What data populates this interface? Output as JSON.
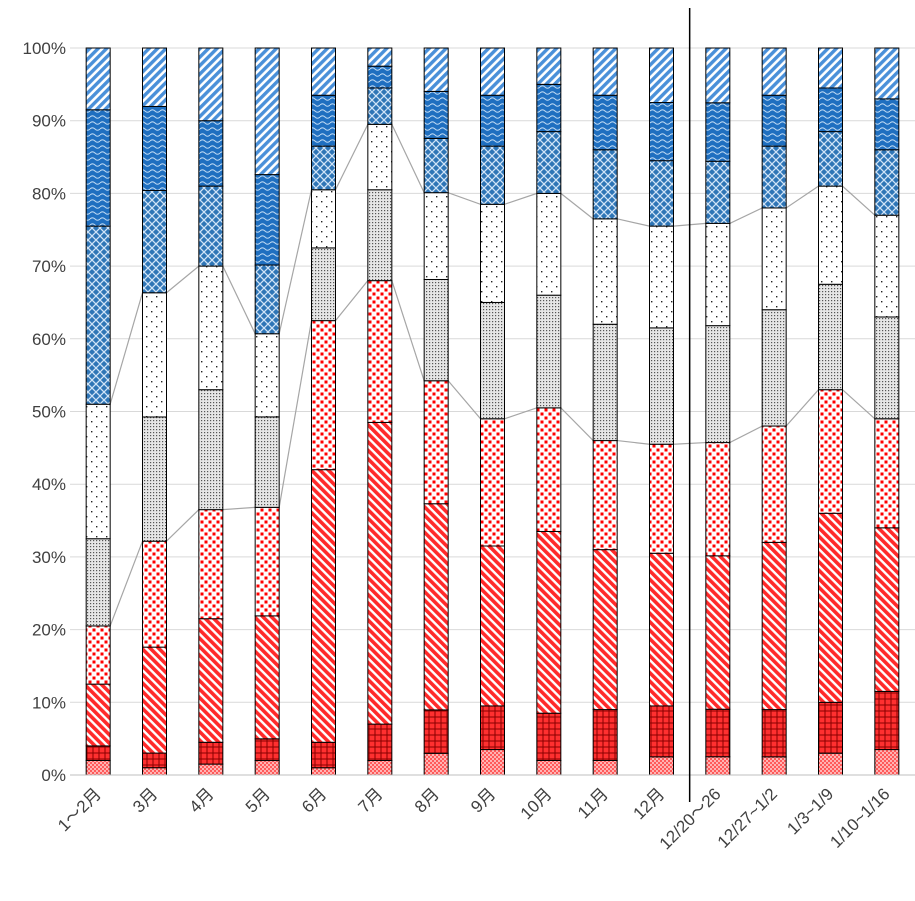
{
  "chart_data": {
    "type": "bar",
    "stacked": true,
    "normalized": true,
    "categories": [
      "1～2月",
      "3月",
      "4月",
      "5月",
      "6月",
      "7月",
      "8月",
      "9月",
      "10月",
      "11月",
      "12月",
      "12/20～26",
      "12/27~1/2",
      "1/3~1/9",
      "1/10~1/16"
    ],
    "ylim": [
      0,
      100
    ],
    "yticks": [
      "0%",
      "10%",
      "20%",
      "30%",
      "40%",
      "50%",
      "60%",
      "70%",
      "80%",
      "90%",
      "100%"
    ],
    "grid": true,
    "legend": "none",
    "divider_after_category": "12月",
    "series": [
      {
        "color": "#ff4b4b",
        "pattern": "checker-light",
        "values": [
          2,
          1,
          1.5,
          2,
          1,
          2,
          3,
          3.5,
          2,
          2,
          2.5,
          2.5,
          2.5,
          3,
          3.5
        ]
      },
      {
        "color": "#ff2020",
        "pattern": "crosshatch",
        "values": [
          2,
          2,
          3,
          3,
          3.5,
          5,
          6,
          6,
          6.5,
          7,
          7,
          6.5,
          6.5,
          7,
          8
        ]
      },
      {
        "color": "#ff2020",
        "pattern": "diagonal",
        "values": [
          8.5,
          14.5,
          17,
          17,
          37.5,
          41.5,
          28.5,
          22,
          25,
          22,
          21,
          21,
          23,
          26,
          22.5
        ]
      },
      {
        "color": "#ff0000",
        "pattern": "dots",
        "values": [
          8,
          14.5,
          15,
          15,
          20.5,
          19.5,
          17,
          17.5,
          17,
          15,
          15,
          15.5,
          16,
          17,
          15
        ]
      },
      {
        "color": "#777777",
        "pattern": "fine-dots",
        "values": [
          12,
          17,
          16.5,
          12.5,
          10,
          12.5,
          14,
          16,
          15.5,
          16,
          16,
          16,
          16,
          14.5,
          14
        ]
      },
      {
        "color": "#333333",
        "pattern": "sparse-dots",
        "values": [
          18.5,
          17,
          17,
          11.5,
          8,
          9,
          12,
          13.5,
          14,
          14.5,
          14,
          14,
          14,
          13.5,
          14
        ]
      },
      {
        "color": "#2e75b6",
        "pattern": "diamond",
        "values": [
          24.5,
          14,
          11,
          9.5,
          6,
          5,
          7.5,
          8,
          8.5,
          9.5,
          9,
          8.5,
          8.5,
          7.5,
          9
        ]
      },
      {
        "color": "#1f6fc0",
        "pattern": "wave",
        "values": [
          16,
          11.5,
          9,
          12.5,
          7,
          3,
          6.5,
          7,
          6.5,
          7.5,
          8,
          8,
          7,
          6,
          7
        ]
      },
      {
        "color": "#4a90d9",
        "pattern": "stripes",
        "values": [
          8.5,
          8,
          10,
          17.5,
          6.5,
          2.5,
          6,
          6.5,
          5,
          6.5,
          7.5,
          7.5,
          6.5,
          5.5,
          7
        ]
      }
    ]
  }
}
